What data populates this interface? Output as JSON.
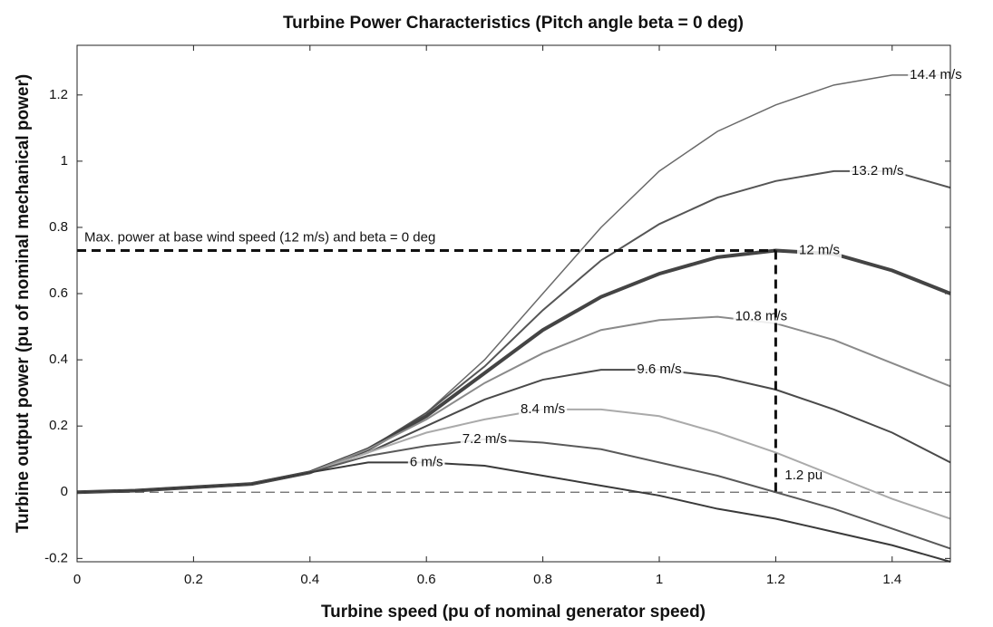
{
  "chart_data": {
    "type": "line",
    "title": "Turbine Power Characteristics (Pitch angle beta = 0 deg)",
    "x_label": "Turbine speed (pu of nominal generator speed)",
    "y_label": "Turbine output power (pu of nominal mechanical power)",
    "x": [
      0,
      0.1,
      0.2,
      0.3,
      0.4,
      0.5,
      0.6,
      0.7,
      0.8,
      0.9,
      1.0,
      1.1,
      1.2,
      1.3,
      1.4,
      1.5
    ],
    "series": [
      {
        "name": "14.4 m/s",
        "color": "#6a6a6a",
        "width": 1.5,
        "values": [
          0,
          0.005,
          0.015,
          0.025,
          0.06,
          0.13,
          0.24,
          0.4,
          0.6,
          0.8,
          0.97,
          1.09,
          1.17,
          1.23,
          1.26,
          1.26
        ]
      },
      {
        "name": "13.2 m/s",
        "color": "#555555",
        "width": 2,
        "values": [
          0,
          0.005,
          0.015,
          0.025,
          0.06,
          0.13,
          0.24,
          0.38,
          0.55,
          0.7,
          0.81,
          0.89,
          0.94,
          0.97,
          0.97,
          0.92
        ]
      },
      {
        "name": "12 m/s",
        "color": "#444444",
        "width": 4,
        "values": [
          0,
          0.005,
          0.015,
          0.025,
          0.06,
          0.13,
          0.23,
          0.36,
          0.49,
          0.59,
          0.66,
          0.71,
          0.73,
          0.72,
          0.67,
          0.6
        ]
      },
      {
        "name": "10.8 m/s",
        "color": "#8a8a8a",
        "width": 2,
        "values": [
          0,
          0.005,
          0.015,
          0.025,
          0.06,
          0.13,
          0.22,
          0.33,
          0.42,
          0.49,
          0.52,
          0.53,
          0.51,
          0.46,
          0.39,
          0.32
        ]
      },
      {
        "name": "9.6 m/s",
        "color": "#4a4a4a",
        "width": 2,
        "values": [
          0,
          0.005,
          0.015,
          0.025,
          0.06,
          0.12,
          0.2,
          0.28,
          0.34,
          0.37,
          0.37,
          0.35,
          0.31,
          0.25,
          0.18,
          0.09
        ]
      },
      {
        "name": "8.4 m/s",
        "color": "#aaaaaa",
        "width": 2,
        "values": [
          0,
          0.005,
          0.015,
          0.025,
          0.06,
          0.12,
          0.18,
          0.22,
          0.25,
          0.25,
          0.23,
          0.18,
          0.12,
          0.05,
          -0.02,
          -0.08
        ]
      },
      {
        "name": "7.2 m/s",
        "color": "#5a5a5a",
        "width": 2,
        "values": [
          0,
          0.005,
          0.015,
          0.025,
          0.06,
          0.11,
          0.14,
          0.16,
          0.15,
          0.13,
          0.09,
          0.05,
          0.0,
          -0.05,
          -0.11,
          -0.17
        ]
      },
      {
        "name": "6 m/s",
        "color": "#3a3a3a",
        "width": 2,
        "values": [
          0,
          0.005,
          0.015,
          0.025,
          0.06,
          0.09,
          0.09,
          0.08,
          0.05,
          0.02,
          -0.01,
          -0.05,
          -0.08,
          -0.12,
          -0.16,
          -0.21
        ]
      }
    ],
    "max_power": {
      "label": "Max. power at base wind speed (12 m/s) and beta = 0 deg",
      "x": 1.2,
      "y": 0.73,
      "x_label": "1.2 pu"
    },
    "xlim": [
      0,
      1.5
    ],
    "ylim": [
      -0.21,
      1.35
    ],
    "xticks": [
      0,
      0.2,
      0.4,
      0.6,
      0.8,
      1,
      1.2,
      1.4
    ],
    "yticks": [
      -0.2,
      0,
      0.2,
      0.4,
      0.6,
      0.8,
      1,
      1.2
    ],
    "grid": false
  }
}
